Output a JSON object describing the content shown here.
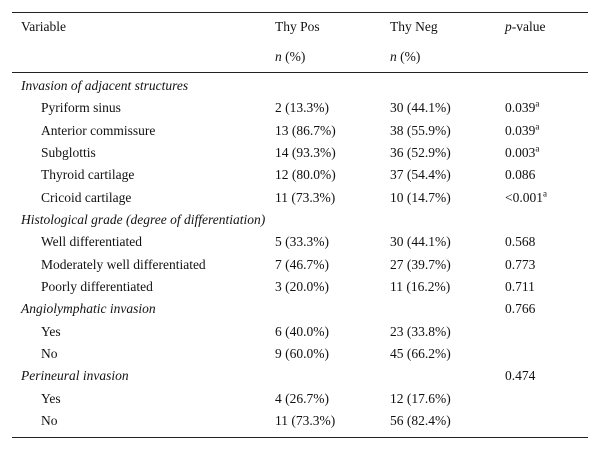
{
  "table": {
    "columns": [
      {
        "text": "Variable"
      },
      {
        "text": "Thy Pos",
        "unit": {
          "italic": "n",
          "text": " (%)"
        }
      },
      {
        "text": "Thy Neg",
        "unit": {
          "italic": "n",
          "text": " (%)"
        }
      },
      {
        "italic": "p",
        "text": "-value"
      }
    ],
    "sections": [
      {
        "title": "Invasion of adjacent structures",
        "rows": [
          {
            "label": "Pyriform sinus",
            "thy_pos": "2 (13.3%)",
            "thy_neg": "30 (44.1%)",
            "p_value": "0.039",
            "note": "a"
          },
          {
            "label": "Anterior commissure",
            "thy_pos": "13 (86.7%)",
            "thy_neg": "38 (55.9%)",
            "p_value": "0.039",
            "note": "a"
          },
          {
            "label": "Subglottis",
            "thy_pos": "14 (93.3%)",
            "thy_neg": "36 (52.9%)",
            "p_value": "0.003",
            "note": "a"
          },
          {
            "label": "Thyroid cartilage",
            "thy_pos": "12 (80.0%)",
            "thy_neg": "37 (54.4%)",
            "p_value": "0.086"
          },
          {
            "label": "Cricoid cartilage",
            "thy_pos": "11 (73.3%)",
            "thy_neg": "10 (14.7%)",
            "p_value": "<0.001",
            "note": "a"
          }
        ]
      },
      {
        "title": "Histological grade (degree of differentiation)",
        "rows": [
          {
            "label": "Well differentiated",
            "thy_pos": "5 (33.3%)",
            "thy_neg": "30 (44.1%)",
            "p_value": "0.568"
          },
          {
            "label": "Moderately well differentiated",
            "thy_pos": "7 (46.7%)",
            "thy_neg": "27 (39.7%)",
            "p_value": "0.773"
          },
          {
            "label": "Poorly differentiated",
            "thy_pos": "3 (20.0%)",
            "thy_neg": "11 (16.2%)",
            "p_value": "0.711"
          }
        ]
      },
      {
        "title": "Angiolymphatic invasion",
        "p_value": "0.766",
        "rows": [
          {
            "label": "Yes",
            "thy_pos": "6 (40.0%)",
            "thy_neg": "23 (33.8%)"
          },
          {
            "label": "No",
            "thy_pos": "9 (60.0%)",
            "thy_neg": "45 (66.2%)"
          }
        ]
      },
      {
        "title": "Perineural invasion",
        "p_value": "0.474",
        "rows": [
          {
            "label": "Yes",
            "thy_pos": "4 (26.7%)",
            "thy_neg": "12 (17.6%)"
          },
          {
            "label": "No",
            "thy_pos": "11 (73.3%)",
            "thy_neg": "56 (82.4%)"
          }
        ]
      }
    ]
  }
}
